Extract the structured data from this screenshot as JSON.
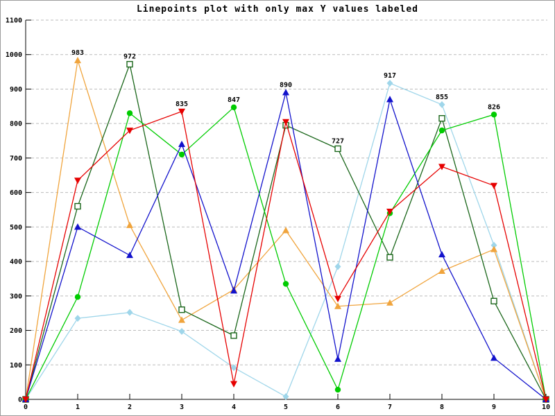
{
  "chart_data": {
    "type": "line",
    "title": "Linepoints plot with only max Y values labeled",
    "x": [
      0,
      1,
      2,
      3,
      4,
      5,
      6,
      7,
      8,
      9,
      10
    ],
    "xlim": [
      0,
      10
    ],
    "ylim": [
      0,
      1100
    ],
    "xtick_labels": [
      "0",
      "1",
      "2",
      "3",
      "4",
      "5",
      "6",
      "7",
      "8",
      "9",
      "10"
    ],
    "ytick_labels": [
      "0",
      "100",
      "200",
      "300",
      "400",
      "500",
      "600",
      "700",
      "800",
      "900",
      "1000",
      "1100"
    ],
    "grid": "horizontal-dashed",
    "grid_color": "#bbbbbb",
    "axis_color": "#000000",
    "legend": "none",
    "series": [
      {
        "name": "light-blue",
        "color": "#9fd6ea",
        "marker": "diamond",
        "values": [
          0,
          235,
          252,
          197,
          92,
          8,
          385,
          917,
          855,
          447,
          0
        ]
      },
      {
        "name": "orange",
        "color": "#f0a43c",
        "marker": "triangle-up",
        "values": [
          0,
          983,
          505,
          230,
          318,
          490,
          270,
          280,
          372,
          435,
          0
        ]
      },
      {
        "name": "forest-green",
        "color": "#1a661a",
        "marker": "open-square",
        "values": [
          0,
          560,
          972,
          260,
          185,
          795,
          727,
          412,
          815,
          285,
          0
        ]
      },
      {
        "name": "bright-green",
        "color": "#00cc00",
        "marker": "circle",
        "values": [
          0,
          297,
          830,
          710,
          847,
          335,
          28,
          540,
          780,
          826,
          0
        ]
      },
      {
        "name": "blue",
        "color": "#1212cc",
        "marker": "triangle-up",
        "values": [
          0,
          500,
          418,
          740,
          315,
          890,
          117,
          870,
          420,
          120,
          0
        ]
      },
      {
        "name": "red",
        "color": "#e60000",
        "marker": "triangle-down",
        "values": [
          0,
          635,
          780,
          835,
          45,
          805,
          292,
          545,
          675,
          620,
          0
        ]
      }
    ],
    "annotations": [
      {
        "x": 1,
        "y": 983,
        "label": "983"
      },
      {
        "x": 2,
        "y": 972,
        "label": "972"
      },
      {
        "x": 3,
        "y": 835,
        "label": "835"
      },
      {
        "x": 4,
        "y": 847,
        "label": "847"
      },
      {
        "x": 5,
        "y": 890,
        "label": "890"
      },
      {
        "x": 6,
        "y": 727,
        "label": "727"
      },
      {
        "x": 7,
        "y": 917,
        "label": "917"
      },
      {
        "x": 8,
        "y": 855,
        "label": "855"
      },
      {
        "x": 9,
        "y": 826,
        "label": "826"
      }
    ]
  }
}
